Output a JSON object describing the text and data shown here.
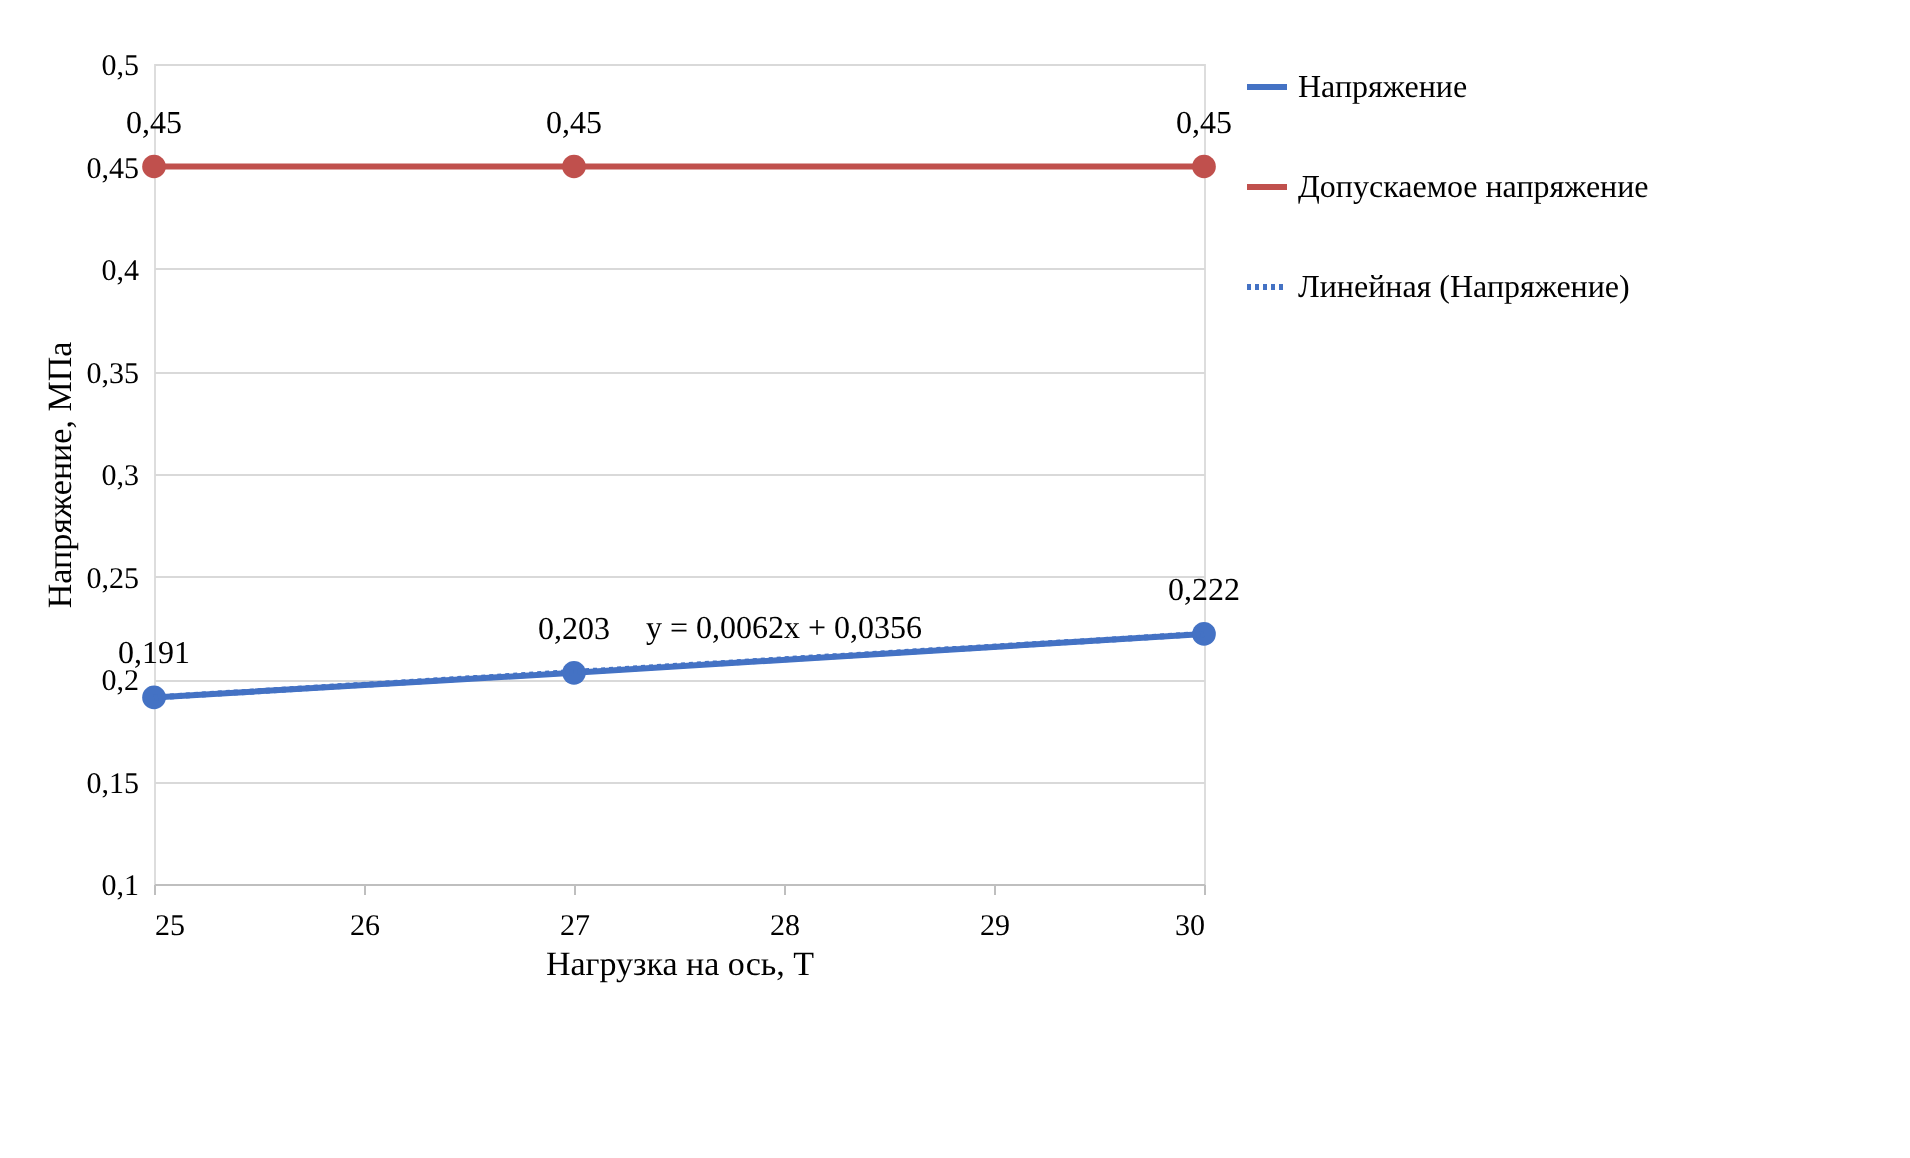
{
  "chart_data": {
    "type": "line",
    "xlabel": "Нагрузка на ось, Т",
    "ylabel": "Напряжение, МПа",
    "x": [
      25,
      27,
      30
    ],
    "series": [
      {
        "name": "Напряжение",
        "color": "#4472c4",
        "values": [
          0.191,
          0.203,
          0.222
        ],
        "value_labels": [
          "0,191",
          "0,203",
          "0,222"
        ],
        "marker": "circle",
        "line_style": "solid"
      },
      {
        "name": "Допускаемое напряжение",
        "color": "#c0504d",
        "values": [
          0.45,
          0.45,
          0.45
        ],
        "value_labels": [
          "0,45",
          "0,45",
          "0,45"
        ],
        "marker": "circle",
        "line_style": "solid"
      },
      {
        "name": "Линейная (Напряжение)",
        "color": "#4472c4",
        "type": "line",
        "x": [
          25,
          30
        ],
        "values": [
          0.191,
          0.222
        ],
        "marker": "none",
        "line_style": "dotted"
      }
    ],
    "annotations": [
      {
        "text": "y = 0,0062x + 0,0356",
        "x": 28,
        "y": 0.215
      }
    ],
    "xlim": [
      25,
      30
    ],
    "xticks": [
      25,
      26,
      27,
      28,
      29,
      30
    ],
    "ylim": [
      0.1,
      0.5
    ],
    "yticks": [
      {
        "value": 0.1,
        "label": "0,1"
      },
      {
        "value": 0.15,
        "label": "0,15"
      },
      {
        "value": 0.2,
        "label": "0,2"
      },
      {
        "value": 0.25,
        "label": "0,25"
      },
      {
        "value": 0.3,
        "label": "0,3"
      },
      {
        "value": 0.35,
        "label": "0,35"
      },
      {
        "value": 0.4,
        "label": "0,4"
      },
      {
        "value": 0.45,
        "label": "0,45"
      },
      {
        "value": 0.5,
        "label": "0,5"
      }
    ],
    "grid": "y",
    "legend": "right"
  }
}
